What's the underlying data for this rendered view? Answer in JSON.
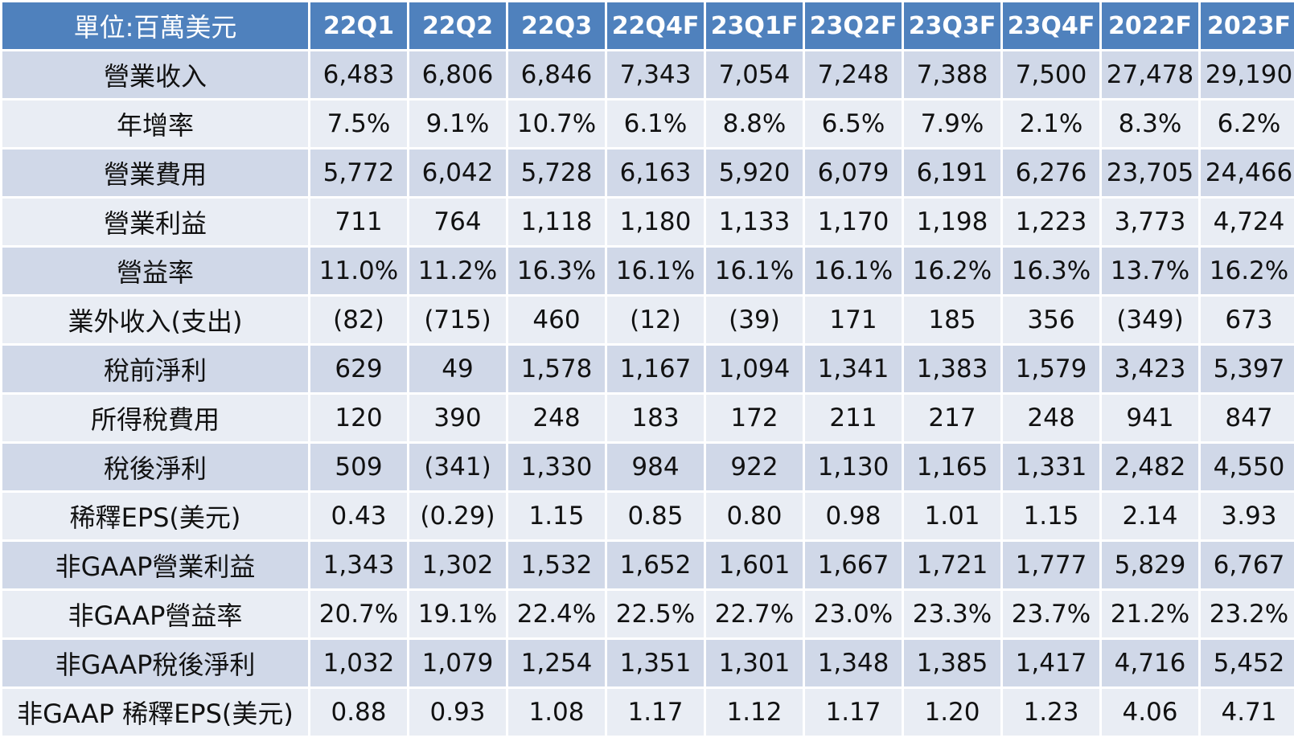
{
  "table": {
    "unit_label": "單位:百萬美元",
    "columns": [
      "22Q1",
      "22Q2",
      "22Q3",
      "22Q4F",
      "23Q1F",
      "23Q2F",
      "23Q3F",
      "23Q4F",
      "2022F",
      "2023F"
    ],
    "rows": [
      {
        "label": "營業收入",
        "values": [
          "6,483",
          "6,806",
          "6,846",
          "7,343",
          "7,054",
          "7,248",
          "7,388",
          "7,500",
          "27,478",
          "29,190"
        ]
      },
      {
        "label": "年增率",
        "values": [
          "7.5%",
          "9.1%",
          "10.7%",
          "6.1%",
          "8.8%",
          "6.5%",
          "7.9%",
          "2.1%",
          "8.3%",
          "6.2%"
        ]
      },
      {
        "label": "營業費用",
        "values": [
          "5,772",
          "6,042",
          "5,728",
          "6,163",
          "5,920",
          "6,079",
          "6,191",
          "6,276",
          "23,705",
          "24,466"
        ]
      },
      {
        "label": "營業利益",
        "values": [
          "711",
          "764",
          "1,118",
          "1,180",
          "1,133",
          "1,170",
          "1,198",
          "1,223",
          "3,773",
          "4,724"
        ]
      },
      {
        "label": "營益率",
        "values": [
          "11.0%",
          "11.2%",
          "16.3%",
          "16.1%",
          "16.1%",
          "16.1%",
          "16.2%",
          "16.3%",
          "13.7%",
          "16.2%"
        ]
      },
      {
        "label": "業外收入(支出)",
        "values": [
          "(82)",
          "(715)",
          "460",
          "(12)",
          "(39)",
          "171",
          "185",
          "356",
          "(349)",
          "673"
        ]
      },
      {
        "label": "稅前淨利",
        "values": [
          "629",
          "49",
          "1,578",
          "1,167",
          "1,094",
          "1,341",
          "1,383",
          "1,579",
          "3,423",
          "5,397"
        ]
      },
      {
        "label": "所得稅費用",
        "values": [
          "120",
          "390",
          "248",
          "183",
          "172",
          "211",
          "217",
          "248",
          "941",
          "847"
        ]
      },
      {
        "label": "稅後淨利",
        "values": [
          "509",
          "(341)",
          "1,330",
          "984",
          "922",
          "1,130",
          "1,165",
          "1,331",
          "2,482",
          "4,550"
        ]
      },
      {
        "label": "稀釋EPS(美元)",
        "values": [
          "0.43",
          "(0.29)",
          "1.15",
          "0.85",
          "0.80",
          "0.98",
          "1.01",
          "1.15",
          "2.14",
          "3.93"
        ]
      },
      {
        "label": "非GAAP營業利益",
        "values": [
          "1,343",
          "1,302",
          "1,532",
          "1,652",
          "1,601",
          "1,667",
          "1,721",
          "1,777",
          "5,829",
          "6,767"
        ]
      },
      {
        "label": "非GAAP營益率",
        "values": [
          "20.7%",
          "19.1%",
          "22.4%",
          "22.5%",
          "22.7%",
          "23.0%",
          "23.3%",
          "23.7%",
          "21.2%",
          "23.2%"
        ]
      },
      {
        "label": "非GAAP稅後淨利",
        "values": [
          "1,032",
          "1,079",
          "1,254",
          "1,351",
          "1,301",
          "1,348",
          "1,385",
          "1,417",
          "4,716",
          "5,452"
        ]
      },
      {
        "label": "非GAAP 稀釋EPS(美元)",
        "values": [
          "0.88",
          "0.93",
          "1.08",
          "1.17",
          "1.12",
          "1.17",
          "1.20",
          "1.23",
          "4.06",
          "4.71"
        ]
      }
    ]
  },
  "colors": {
    "header_bg": "#4f81bd",
    "header_text": "#ffffff",
    "row_band_dark": "#d0d8e8",
    "row_band_light": "#e9edf4"
  }
}
